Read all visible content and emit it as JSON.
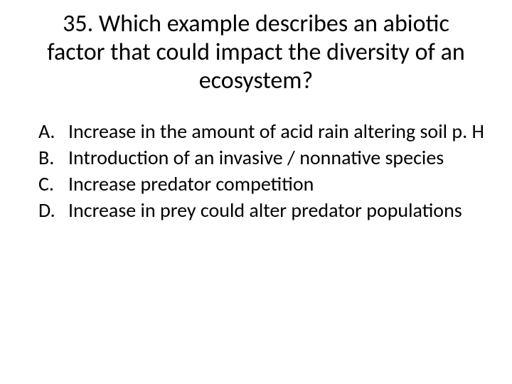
{
  "question": {
    "number": "35.",
    "text": "Which example describes an abiotic factor that could impact the diversity of an ecosystem?"
  },
  "options": [
    {
      "letter": "A.",
      "text": "Increase in the amount of acid rain altering soil p. H"
    },
    {
      "letter": "B.",
      "text": "Introduction of an invasive / nonnative species"
    },
    {
      "letter": "C.",
      "text": "Increase predator competition"
    },
    {
      "letter": "D.",
      "text": "Increase in prey could alter predator populations"
    }
  ],
  "style": {
    "background_color": "#ffffff",
    "text_color": "#000000",
    "title_fontsize": 34,
    "option_fontsize": 28,
    "font_family": "Calibri"
  }
}
